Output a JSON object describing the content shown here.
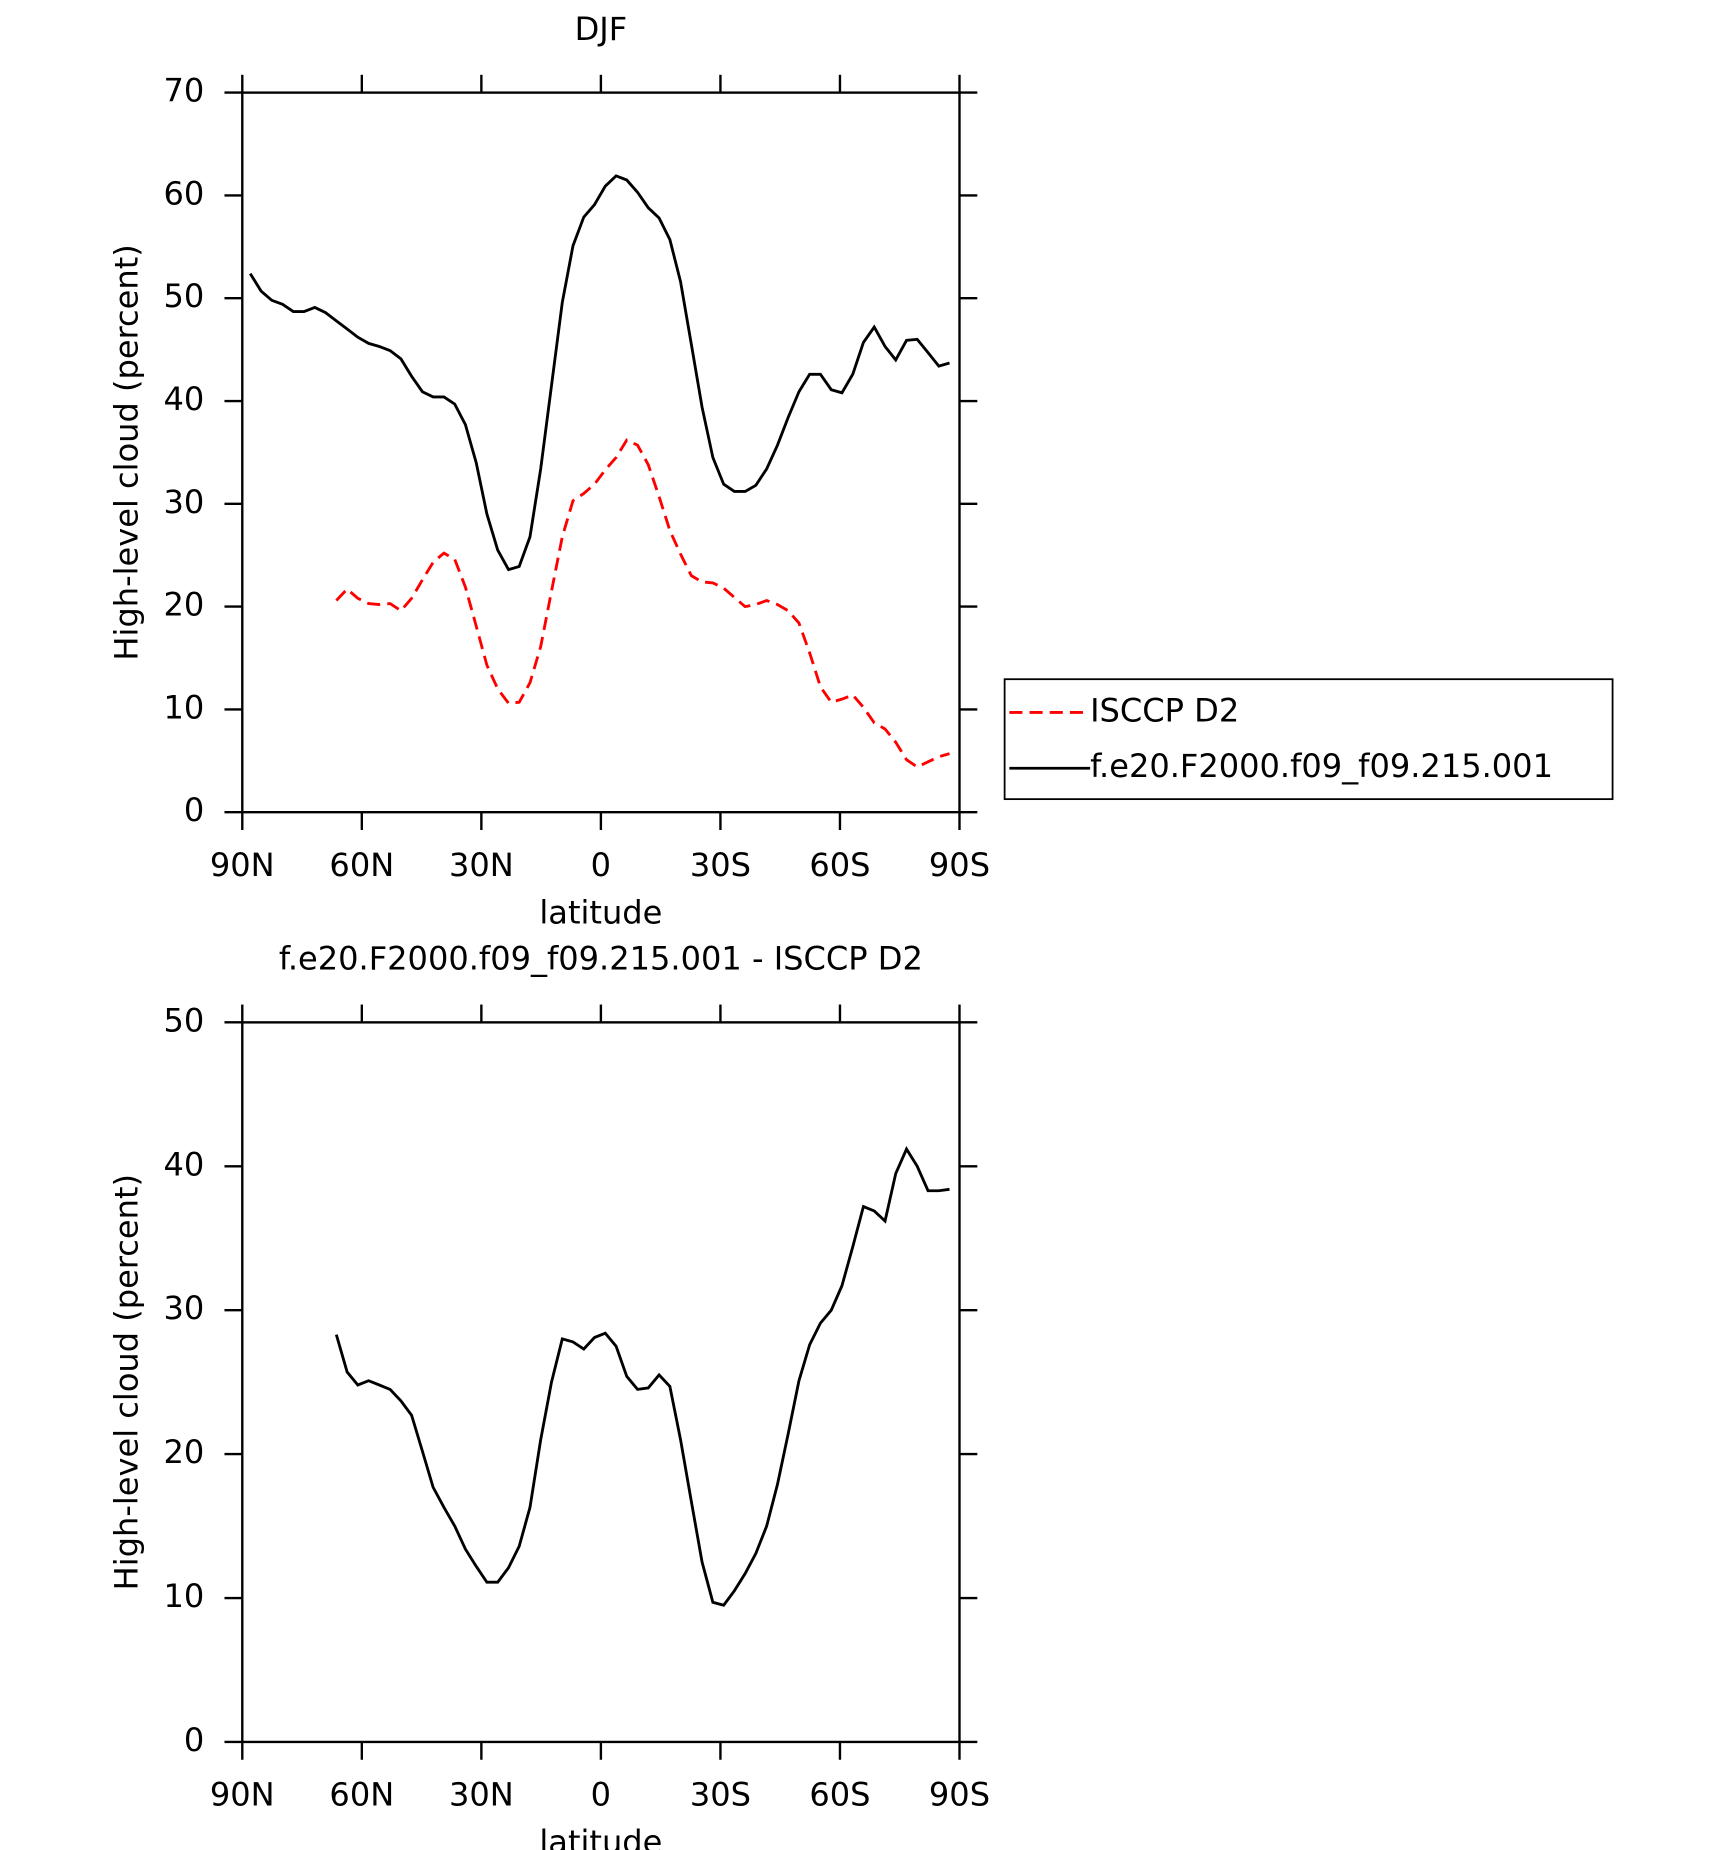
{
  "chart_data": [
    {
      "type": "line",
      "title": "DJF",
      "x_label": "latitude",
      "y_label": "High-level cloud (percent)",
      "x": [
        88,
        85.3,
        82.6,
        79.9,
        77.2,
        74.5,
        71.8,
        69.1,
        66.4,
        63.7,
        61,
        58.3,
        55.6,
        52.9,
        50.2,
        47.5,
        44.8,
        42.1,
        39.4,
        36.7,
        34,
        31.3,
        28.6,
        25.9,
        23.2,
        20.5,
        17.8,
        15.1,
        12.4,
        9.7,
        7,
        4.3,
        1.6,
        -1.1,
        -3.8,
        -6.5,
        -9.2,
        -11.9,
        -14.6,
        -17.3,
        -20,
        -22.7,
        -25.4,
        -28.1,
        -30.8,
        -33.5,
        -36.2,
        -38.9,
        -41.6,
        -44.3,
        -47,
        -49.7,
        -52.4,
        -55.1,
        -57.8,
        -60.5,
        -63.2,
        -65.9,
        -68.6,
        -71.3,
        -74,
        -76.7,
        -79.4,
        -82.1,
        -84.8,
        -87.5
      ],
      "series": [
        {
          "name": "ISCCP D2",
          "color": "#ff0000",
          "dashed": true,
          "values": [
            null,
            null,
            null,
            null,
            null,
            null,
            null,
            null,
            20.6,
            21.7,
            20.8,
            20.3,
            20.2,
            20.3,
            19.6,
            20.8,
            22.6,
            24.3,
            25.2,
            24.6,
            21.9,
            18.1,
            14.3,
            12.0,
            10.6,
            10.7,
            12.6,
            16.1,
            21.5,
            26.8,
            30.3,
            31.0,
            31.9,
            33.3,
            34.5,
            36.2,
            35.7,
            33.8,
            30.7,
            27.4,
            25.1,
            23.0,
            22.4,
            22.3,
            21.8,
            20.9,
            20.0,
            20.2,
            20.6,
            20.2,
            19.6,
            18.4,
            15.5,
            12.2,
            10.7,
            11.0,
            11.4,
            10.2,
            8.7,
            8.1,
            6.8,
            5.1,
            4.4,
            4.9,
            5.4,
            5.7
          ]
        },
        {
          "name": "f.e20.F2000.f09_f09.215.001",
          "color": "#000000",
          "dashed": false,
          "values": [
            52.4,
            50.7,
            49.8,
            49.4,
            48.7,
            48.7,
            49.1,
            48.6,
            47.8,
            47.0,
            46.2,
            45.6,
            45.3,
            44.9,
            44.1,
            42.4,
            40.9,
            40.4,
            40.4,
            39.7,
            37.7,
            34.0,
            29.0,
            25.5,
            23.6,
            23.9,
            26.8,
            33.4,
            41.5,
            49.6,
            55.1,
            57.9,
            59.1,
            60.9,
            61.9,
            61.5,
            60.3,
            58.8,
            57.8,
            55.7,
            51.6,
            45.5,
            39.4,
            34.5,
            31.9,
            31.2,
            31.2,
            31.8,
            33.4,
            35.7,
            38.4,
            40.9,
            42.6,
            42.6,
            41.1,
            40.8,
            42.6,
            45.7,
            47.2,
            45.3,
            44.0,
            45.9,
            46.0,
            44.7,
            43.4,
            43.7
          ]
        }
      ],
      "xlim": [
        90,
        -90
      ],
      "xticks": [
        {
          "value": 90,
          "label": "90N"
        },
        {
          "value": 60,
          "label": "60N"
        },
        {
          "value": 30,
          "label": "30N"
        },
        0,
        {
          "value": -30,
          "label": "30S"
        },
        {
          "value": -60,
          "label": "60S"
        },
        {
          "value": -90,
          "label": "90S"
        }
      ],
      "ylim": [
        0,
        70
      ],
      "yticks": [
        0,
        10,
        20,
        30,
        40,
        50,
        60,
        70
      ],
      "legend": "right"
    },
    {
      "type": "line",
      "title": "f.e20.F2000.f09_f09.215.001 - ISCCP D2",
      "x_label": "latitude",
      "y_label": "High-level cloud (percent)",
      "x": [
        88,
        85.3,
        82.6,
        79.9,
        77.2,
        74.5,
        71.8,
        69.1,
        66.4,
        63.7,
        61,
        58.3,
        55.6,
        52.9,
        50.2,
        47.5,
        44.8,
        42.1,
        39.4,
        36.7,
        34,
        31.3,
        28.6,
        25.9,
        23.2,
        20.5,
        17.8,
        15.1,
        12.4,
        9.7,
        7,
        4.3,
        1.6,
        -1.1,
        -3.8,
        -6.5,
        -9.2,
        -11.9,
        -14.6,
        -17.3,
        -20,
        -22.7,
        -25.4,
        -28.1,
        -30.8,
        -33.5,
        -36.2,
        -38.9,
        -41.6,
        -44.3,
        -47,
        -49.7,
        -52.4,
        -55.1,
        -57.8,
        -60.5,
        -63.2,
        -65.9,
        -68.6,
        -71.3,
        -74,
        -76.7,
        -79.4,
        -82.1,
        -84.8,
        -87.5
      ],
      "series": [
        {
          "color": "#000000",
          "dashed": false,
          "values": [
            null,
            null,
            null,
            null,
            null,
            null,
            null,
            null,
            28.3,
            25.7,
            24.8,
            25.1,
            24.8,
            24.5,
            23.7,
            22.7,
            20.2,
            17.7,
            16.3,
            15.0,
            13.4,
            12.2,
            11.1,
            11.1,
            12.1,
            13.6,
            16.3,
            21.0,
            25.0,
            28.0,
            27.8,
            27.3,
            28.1,
            28.4,
            27.5,
            25.4,
            24.5,
            24.6,
            25.5,
            24.7,
            21.0,
            16.7,
            12.5,
            9.7,
            9.5,
            10.5,
            11.7,
            13.1,
            15.0,
            17.9,
            21.4,
            25.1,
            27.6,
            29.1,
            30.0,
            31.7,
            34.4,
            37.2,
            36.9,
            36.2,
            39.5,
            41.2,
            40.0,
            38.3,
            38.3,
            38.4
          ]
        }
      ],
      "xlim": [
        90,
        -90
      ],
      "xticks": [
        {
          "value": 90,
          "label": "90N"
        },
        {
          "value": 60,
          "label": "60N"
        },
        {
          "value": 30,
          "label": "30N"
        },
        0,
        {
          "value": -30,
          "label": "30S"
        },
        {
          "value": -60,
          "label": "60S"
        },
        {
          "value": -90,
          "label": "90S"
        }
      ],
      "ylim": [
        0,
        50
      ],
      "yticks": [
        0,
        10,
        20,
        30,
        40,
        50
      ]
    }
  ]
}
